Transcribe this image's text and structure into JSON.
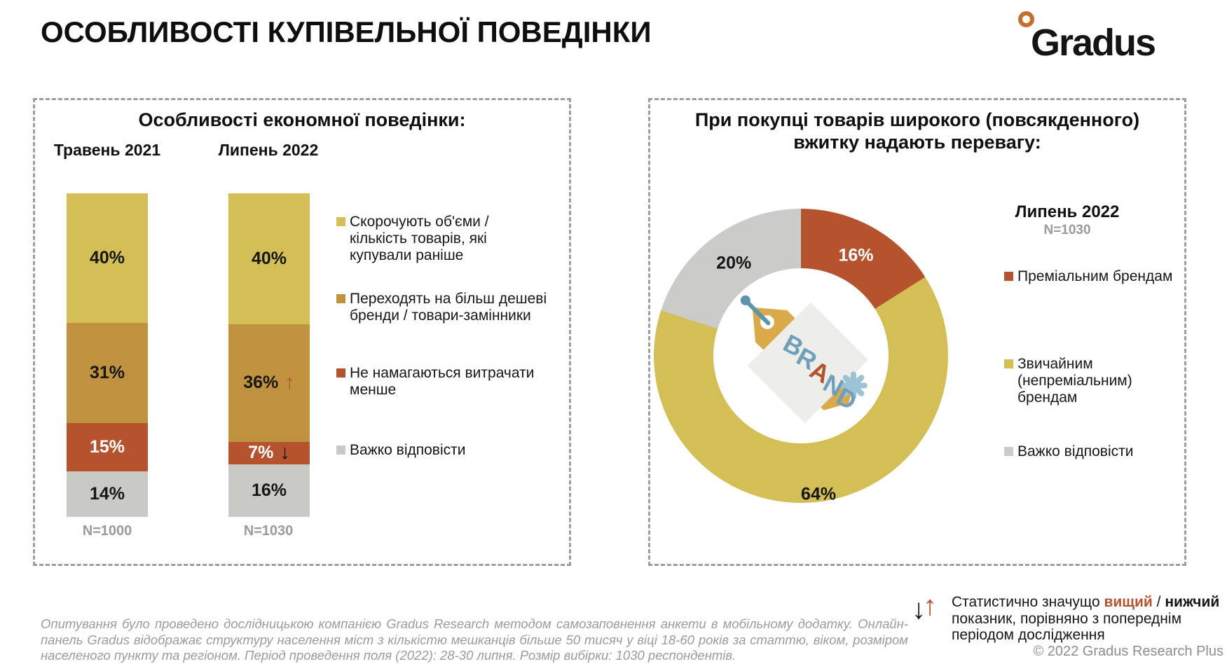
{
  "header": {
    "title": "ОСОБЛИВОСТІ КУПІВЕЛЬНОЇ ПОВЕДІНКИ",
    "logo": {
      "brand": "Gradus",
      "degree_color": "#c2702b"
    }
  },
  "chart_data": [
    {
      "type": "bar",
      "subtype": "stacked-column",
      "title": "Особливості економної поведінки:",
      "categories": [
        "Травень 2021",
        "Липень 2022"
      ],
      "sample_sizes": [
        "N=1000",
        "N=1030"
      ],
      "unit": "%",
      "legend_position": "right",
      "series": [
        {
          "name": "Скорочують об'єми / кількість товарів, які купували раніше",
          "color": "#d4bf56",
          "text_color": "#161616",
          "values": [
            40,
            40
          ]
        },
        {
          "name": "Переходять на більш дешеві бренди / товари-замінники",
          "color": "#c0923f",
          "text_color": "#161616",
          "values": [
            31,
            36
          ]
        },
        {
          "name": "Не намагаються витрачати менше",
          "color": "#b5532f",
          "text_color": "#ffffff",
          "values": [
            15,
            7
          ]
        },
        {
          "name": "Важко відповісти",
          "color": "#c9c9c6",
          "text_color": "#161616",
          "values": [
            14,
            16
          ]
        }
      ],
      "annotations": [
        {
          "category_index": 1,
          "series_index": 1,
          "symbol": "↑",
          "color": "#b5532f",
          "meaning": "статистично значущо вищий"
        },
        {
          "category_index": 1,
          "series_index": 2,
          "symbol": "↓",
          "color": "#111111",
          "meaning": "статистично значущо нижчий"
        }
      ]
    },
    {
      "type": "pie",
      "subtype": "donut",
      "title": "При покупці товарів широкого (повсякденного) вжитку надають перевагу:",
      "period": "Липень 2022",
      "sample_size": "N=1030",
      "center_label": "BRAND",
      "legend_position": "right",
      "slices": [
        {
          "label": "Преміальним брендам",
          "value": 16,
          "color": "#b5532f",
          "label_color": "#ffffff",
          "label_radius": 163
        },
        {
          "label": "Звичайним (непреміальним) брендам",
          "value": 64,
          "color": "#d4bf56",
          "label_color": "#161616",
          "label_radius": 200
        },
        {
          "label": "Важко відповісти",
          "value": 20,
          "color": "#cbcbc9",
          "label_color": "#161616",
          "label_radius": 163
        }
      ]
    }
  ],
  "footnote": {
    "arrow_down": "↓",
    "arrow_up": "↑",
    "arrow_up_color": "#b5532f",
    "prefix": "Статистично значущо ",
    "higher_word": "вищий",
    "separator": " / ",
    "lower_word": "нижчий",
    "rest": " показник, порівняно з попереднім періодом дослідження",
    "higher_color": "#b5532f"
  },
  "footer": {
    "methodology": "Опитування було проведено дослідницькою компанією Gradus Research методом самозаповнення анкети в мобільному додатку. Онлайн-панель Gradus відображає структуру населення міст з кількістю мешканців більше 50 тисяч у віці 18-60 років за статтю, віком, розміром населеного пункту та регіоном. Період проведення поля (2022): 28-30 липня. Розмір вибірки: 1030 респондентів.",
    "copyright": "© 2022 Gradus Research Plus"
  }
}
